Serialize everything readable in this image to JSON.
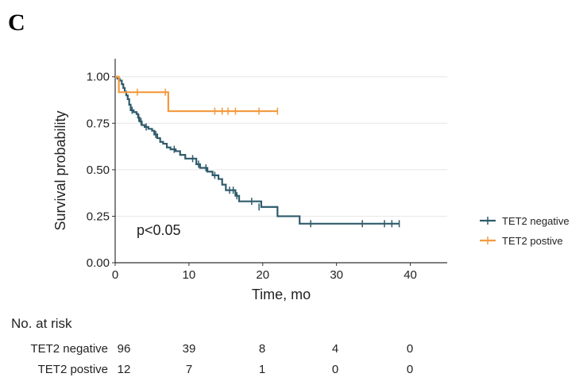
{
  "panel_label": "C",
  "colors": {
    "negative": "#2f5b6b",
    "positive": "#f39a3f",
    "grid": "#e6e6e6",
    "axis": "#333333"
  },
  "chart_data": {
    "type": "line",
    "subtype": "kaplan-meier",
    "xlabel": "Time, mo",
    "ylabel": "Survival probability",
    "xlim": [
      0,
      45
    ],
    "ylim": [
      0,
      1.08
    ],
    "xticks": [
      0,
      10,
      20,
      30,
      40
    ],
    "xtick_labels": [
      "0",
      "10",
      "20",
      "30",
      "40"
    ],
    "yticks": [
      0,
      0.25,
      0.5,
      0.75,
      1.0
    ],
    "ytick_labels": [
      "0.00",
      "0.25",
      "0.50",
      "0.75",
      "1.00"
    ],
    "grid": "horizontal",
    "legend_position": "right",
    "annotation": "p<0.05",
    "series": [
      {
        "name": "TET2 negative",
        "color": "#2f5b6b",
        "steps": [
          [
            0,
            1.0
          ],
          [
            0.3,
            0.99
          ],
          [
            0.6,
            0.98
          ],
          [
            0.9,
            0.96
          ],
          [
            1.1,
            0.94
          ],
          [
            1.3,
            0.92
          ],
          [
            1.5,
            0.9
          ],
          [
            1.7,
            0.88
          ],
          [
            1.9,
            0.85
          ],
          [
            2.1,
            0.82
          ],
          [
            2.5,
            0.81
          ],
          [
            2.9,
            0.8
          ],
          [
            3.1,
            0.78
          ],
          [
            3.3,
            0.76
          ],
          [
            3.6,
            0.74
          ],
          [
            4.0,
            0.73
          ],
          [
            4.5,
            0.72
          ],
          [
            5.0,
            0.71
          ],
          [
            5.3,
            0.69
          ],
          [
            5.7,
            0.67
          ],
          [
            6.1,
            0.65
          ],
          [
            6.5,
            0.64
          ],
          [
            7.0,
            0.62
          ],
          [
            7.5,
            0.61
          ],
          [
            8.2,
            0.6
          ],
          [
            8.8,
            0.58
          ],
          [
            9.5,
            0.56
          ],
          [
            11.0,
            0.53
          ],
          [
            11.5,
            0.51
          ],
          [
            12.5,
            0.49
          ],
          [
            13.2,
            0.47
          ],
          [
            14.0,
            0.45
          ],
          [
            14.5,
            0.42
          ],
          [
            15.0,
            0.39
          ],
          [
            16.3,
            0.36
          ],
          [
            16.8,
            0.33
          ],
          [
            19.8,
            0.3
          ],
          [
            22.0,
            0.25
          ],
          [
            25.0,
            0.21
          ],
          [
            38.5,
            0.21
          ]
        ],
        "censored": [
          [
            2.3,
            0.82
          ],
          [
            3.2,
            0.78
          ],
          [
            3.5,
            0.76
          ],
          [
            4.2,
            0.73
          ],
          [
            5.5,
            0.69
          ],
          [
            8.0,
            0.61
          ],
          [
            10.5,
            0.56
          ],
          [
            11.3,
            0.53
          ],
          [
            12.3,
            0.51
          ],
          [
            13.5,
            0.47
          ],
          [
            15.5,
            0.39
          ],
          [
            16.0,
            0.39
          ],
          [
            16.5,
            0.36
          ],
          [
            18.5,
            0.33
          ],
          [
            19.5,
            0.3
          ],
          [
            26.5,
            0.21
          ],
          [
            33.5,
            0.21
          ],
          [
            36.5,
            0.21
          ],
          [
            37.5,
            0.21
          ],
          [
            38.5,
            0.21
          ]
        ]
      },
      {
        "name": "TET2 postive",
        "color": "#f39a3f",
        "steps": [
          [
            0,
            1.0
          ],
          [
            0.5,
            0.917
          ],
          [
            7.2,
            0.917
          ],
          [
            7.2,
            0.815
          ],
          [
            22.0,
            0.815
          ]
        ],
        "censored": [
          [
            3.0,
            0.917
          ],
          [
            6.8,
            0.917
          ],
          [
            13.5,
            0.815
          ],
          [
            14.5,
            0.815
          ],
          [
            15.3,
            0.815
          ],
          [
            16.3,
            0.815
          ],
          [
            19.5,
            0.815
          ],
          [
            22.0,
            0.815
          ]
        ]
      }
    ]
  },
  "risk_table": {
    "title": "No. at risk",
    "times": [
      0,
      10,
      20,
      30,
      40
    ],
    "rows": [
      {
        "label": "TET2 negative",
        "values": [
          "96",
          "39",
          "8",
          "4",
          "0"
        ]
      },
      {
        "label": "TET2 postive",
        "values": [
          "12",
          "7",
          "1",
          "0",
          "0"
        ]
      }
    ]
  }
}
